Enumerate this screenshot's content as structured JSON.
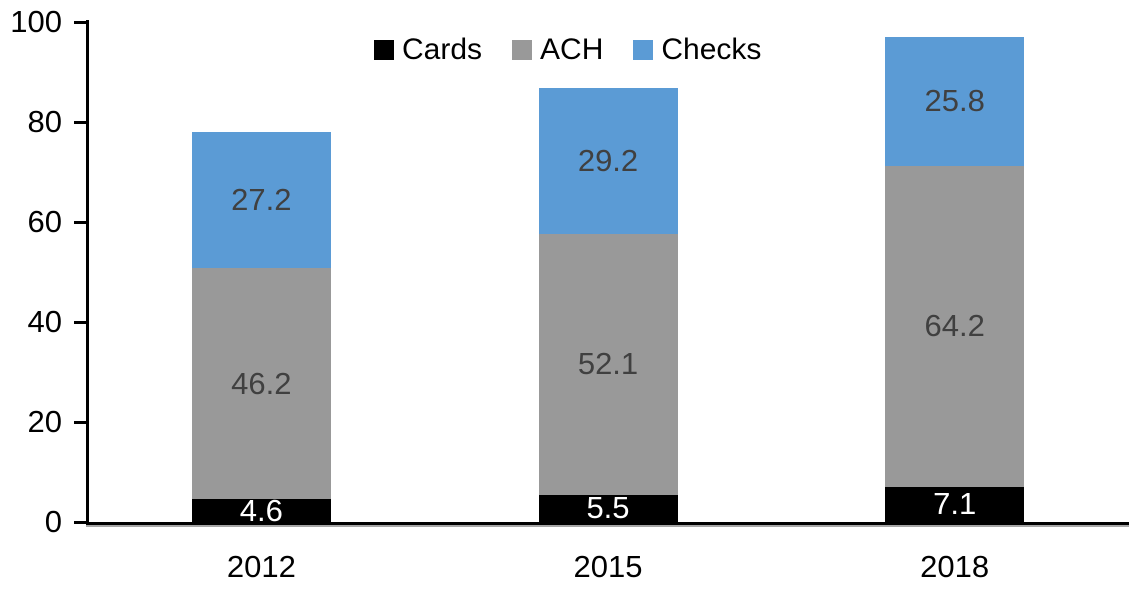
{
  "chart_data": {
    "type": "bar",
    "stacked": true,
    "title": "",
    "xlabel": "",
    "ylabel": "",
    "categories": [
      "2012",
      "2015",
      "2018"
    ],
    "series": [
      {
        "name": "Cards",
        "color": "#000000",
        "label_color": "#ffffff",
        "values": [
          4.6,
          5.5,
          7.1
        ]
      },
      {
        "name": "ACH",
        "color": "#999999",
        "label_color": "#404040",
        "values": [
          46.2,
          52.1,
          64.2
        ]
      },
      {
        "name": "Checks",
        "color": "#5b9bd5",
        "label_color": "#404040",
        "values": [
          27.2,
          29.2,
          25.8
        ]
      }
    ],
    "totals": [
      78.0,
      86.8,
      97.1
    ],
    "ylim": [
      0,
      100
    ],
    "yticks": [
      0,
      20,
      40,
      60,
      80,
      100
    ],
    "grid": false,
    "legend_position": "top-center",
    "data_labels": true,
    "axis_color": "#000000",
    "background_color": "#ffffff"
  }
}
